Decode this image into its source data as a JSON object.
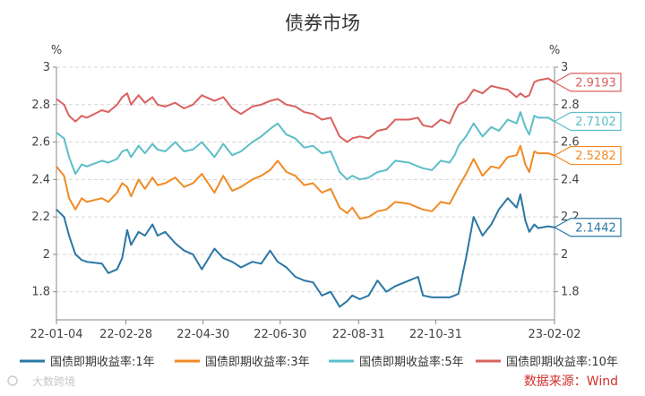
{
  "chart_data": {
    "type": "line",
    "title": "债券市场",
    "y_unit_left": "%",
    "y_unit_right": "%",
    "ylim": [
      1.65,
      3.0
    ],
    "y_ticks_left": [
      "1.8",
      "2",
      "2.2",
      "2.4",
      "2.6",
      "2.8",
      "3"
    ],
    "y_ticks_right": [
      "1.8",
      "2",
      "2.2",
      "2.4",
      "2.6",
      "2.8",
      "3"
    ],
    "y_tick_values": [
      1.8,
      2.0,
      2.2,
      2.4,
      2.6,
      2.8,
      3.0
    ],
    "x_ticks": [
      "22-01-04",
      "22-02-28",
      "22-04-30",
      "22-06-30",
      "22-08-31",
      "22-10-31",
      "23-02-02"
    ],
    "x_tick_dates": [
      "2022-01-04",
      "2022-02-28",
      "2022-04-30",
      "2022-06-30",
      "2022-08-31",
      "2022-10-31",
      "2023-02-02"
    ],
    "grid": true,
    "legend_position": "bottom",
    "series": [
      {
        "name": "国债即期收益率:1年",
        "color": "#2a77a4",
        "last_label": "2.1442",
        "points": [
          [
            "2022-01-04",
            2.24
          ],
          [
            "2022-01-10",
            2.2
          ],
          [
            "2022-01-14",
            2.1
          ],
          [
            "2022-01-19",
            2.0
          ],
          [
            "2022-01-24",
            1.97
          ],
          [
            "2022-01-28",
            1.96
          ],
          [
            "2022-02-09",
            1.95
          ],
          [
            "2022-02-14",
            1.9
          ],
          [
            "2022-02-21",
            1.92
          ],
          [
            "2022-02-25",
            1.98
          ],
          [
            "2022-03-01",
            2.13
          ],
          [
            "2022-03-04",
            2.05
          ],
          [
            "2022-03-10",
            2.12
          ],
          [
            "2022-03-15",
            2.1
          ],
          [
            "2022-03-21",
            2.16
          ],
          [
            "2022-03-25",
            2.1
          ],
          [
            "2022-03-31",
            2.12
          ],
          [
            "2022-04-08",
            2.06
          ],
          [
            "2022-04-15",
            2.02
          ],
          [
            "2022-04-22",
            2.0
          ],
          [
            "2022-04-29",
            1.92
          ],
          [
            "2022-05-09",
            2.03
          ],
          [
            "2022-05-16",
            1.98
          ],
          [
            "2022-05-23",
            1.96
          ],
          [
            "2022-05-30",
            1.93
          ],
          [
            "2022-06-08",
            1.96
          ],
          [
            "2022-06-15",
            1.95
          ],
          [
            "2022-06-22",
            2.02
          ],
          [
            "2022-06-28",
            1.96
          ],
          [
            "2022-07-05",
            1.93
          ],
          [
            "2022-07-12",
            1.88
          ],
          [
            "2022-07-19",
            1.86
          ],
          [
            "2022-07-26",
            1.85
          ],
          [
            "2022-08-02",
            1.78
          ],
          [
            "2022-08-09",
            1.8
          ],
          [
            "2022-08-16",
            1.72
          ],
          [
            "2022-08-22",
            1.75
          ],
          [
            "2022-08-26",
            1.78
          ],
          [
            "2022-09-01",
            1.76
          ],
          [
            "2022-09-08",
            1.78
          ],
          [
            "2022-09-15",
            1.86
          ],
          [
            "2022-09-22",
            1.8
          ],
          [
            "2022-09-29",
            1.83
          ],
          [
            "2022-10-10",
            1.86
          ],
          [
            "2022-10-17",
            1.88
          ],
          [
            "2022-10-21",
            1.78
          ],
          [
            "2022-10-28",
            1.77
          ],
          [
            "2022-11-04",
            1.77
          ],
          [
            "2022-11-11",
            1.77
          ],
          [
            "2022-11-15",
            1.78
          ],
          [
            "2022-11-18",
            1.79
          ],
          [
            "2022-11-24",
            1.98
          ],
          [
            "2022-11-30",
            2.2
          ],
          [
            "2022-12-07",
            2.1
          ],
          [
            "2022-12-14",
            2.16
          ],
          [
            "2022-12-20",
            2.24
          ],
          [
            "2022-12-27",
            2.3
          ],
          [
            "2023-01-03",
            2.25
          ],
          [
            "2023-01-06",
            2.32
          ],
          [
            "2023-01-10",
            2.18
          ],
          [
            "2023-01-13",
            2.12
          ],
          [
            "2023-01-17",
            2.16
          ],
          [
            "2023-01-20",
            2.14
          ],
          [
            "2023-01-28",
            2.15
          ],
          [
            "2023-02-02",
            2.1442
          ]
        ]
      },
      {
        "name": "国债即期收益率:3年",
        "color": "#f08a24",
        "last_label": "2.5282",
        "points": [
          [
            "2022-01-04",
            2.47
          ],
          [
            "2022-01-10",
            2.42
          ],
          [
            "2022-01-14",
            2.3
          ],
          [
            "2022-01-19",
            2.24
          ],
          [
            "2022-01-24",
            2.3
          ],
          [
            "2022-01-28",
            2.28
          ],
          [
            "2022-02-09",
            2.3
          ],
          [
            "2022-02-14",
            2.28
          ],
          [
            "2022-02-21",
            2.33
          ],
          [
            "2022-02-25",
            2.38
          ],
          [
            "2022-03-01",
            2.36
          ],
          [
            "2022-03-04",
            2.31
          ],
          [
            "2022-03-10",
            2.4
          ],
          [
            "2022-03-15",
            2.35
          ],
          [
            "2022-03-21",
            2.41
          ],
          [
            "2022-03-25",
            2.37
          ],
          [
            "2022-03-31",
            2.38
          ],
          [
            "2022-04-08",
            2.41
          ],
          [
            "2022-04-15",
            2.36
          ],
          [
            "2022-04-22",
            2.38
          ],
          [
            "2022-04-29",
            2.43
          ],
          [
            "2022-05-09",
            2.33
          ],
          [
            "2022-05-16",
            2.42
          ],
          [
            "2022-05-23",
            2.34
          ],
          [
            "2022-05-30",
            2.36
          ],
          [
            "2022-06-08",
            2.4
          ],
          [
            "2022-06-15",
            2.42
          ],
          [
            "2022-06-22",
            2.45
          ],
          [
            "2022-06-28",
            2.5
          ],
          [
            "2022-07-05",
            2.44
          ],
          [
            "2022-07-12",
            2.42
          ],
          [
            "2022-07-19",
            2.37
          ],
          [
            "2022-07-26",
            2.38
          ],
          [
            "2022-08-02",
            2.33
          ],
          [
            "2022-08-09",
            2.35
          ],
          [
            "2022-08-16",
            2.25
          ],
          [
            "2022-08-22",
            2.22
          ],
          [
            "2022-08-26",
            2.25
          ],
          [
            "2022-09-01",
            2.19
          ],
          [
            "2022-09-08",
            2.2
          ],
          [
            "2022-09-15",
            2.23
          ],
          [
            "2022-09-22",
            2.24
          ],
          [
            "2022-09-29",
            2.28
          ],
          [
            "2022-10-10",
            2.27
          ],
          [
            "2022-10-17",
            2.25
          ],
          [
            "2022-10-21",
            2.24
          ],
          [
            "2022-10-28",
            2.23
          ],
          [
            "2022-11-04",
            2.28
          ],
          [
            "2022-11-11",
            2.27
          ],
          [
            "2022-11-15",
            2.32
          ],
          [
            "2022-11-18",
            2.36
          ],
          [
            "2022-11-24",
            2.43
          ],
          [
            "2022-11-30",
            2.51
          ],
          [
            "2022-12-07",
            2.42
          ],
          [
            "2022-12-14",
            2.47
          ],
          [
            "2022-12-20",
            2.46
          ],
          [
            "2022-12-27",
            2.52
          ],
          [
            "2023-01-03",
            2.53
          ],
          [
            "2023-01-06",
            2.58
          ],
          [
            "2023-01-10",
            2.48
          ],
          [
            "2023-01-13",
            2.44
          ],
          [
            "2023-01-17",
            2.55
          ],
          [
            "2023-01-20",
            2.54
          ],
          [
            "2023-01-28",
            2.54
          ],
          [
            "2023-02-02",
            2.5282
          ]
        ]
      },
      {
        "name": "国债即期收益率:5年",
        "color": "#5cbec8",
        "last_label": "2.7102",
        "points": [
          [
            "2022-01-04",
            2.65
          ],
          [
            "2022-01-10",
            2.62
          ],
          [
            "2022-01-14",
            2.52
          ],
          [
            "2022-01-19",
            2.43
          ],
          [
            "2022-01-24",
            2.48
          ],
          [
            "2022-01-28",
            2.47
          ],
          [
            "2022-02-09",
            2.5
          ],
          [
            "2022-02-14",
            2.49
          ],
          [
            "2022-02-21",
            2.51
          ],
          [
            "2022-02-25",
            2.55
          ],
          [
            "2022-03-01",
            2.56
          ],
          [
            "2022-03-04",
            2.52
          ],
          [
            "2022-03-10",
            2.58
          ],
          [
            "2022-03-15",
            2.54
          ],
          [
            "2022-03-21",
            2.59
          ],
          [
            "2022-03-25",
            2.56
          ],
          [
            "2022-03-31",
            2.55
          ],
          [
            "2022-04-08",
            2.6
          ],
          [
            "2022-04-15",
            2.55
          ],
          [
            "2022-04-22",
            2.56
          ],
          [
            "2022-04-29",
            2.6
          ],
          [
            "2022-05-09",
            2.52
          ],
          [
            "2022-05-16",
            2.59
          ],
          [
            "2022-05-23",
            2.53
          ],
          [
            "2022-05-30",
            2.55
          ],
          [
            "2022-06-08",
            2.6
          ],
          [
            "2022-06-15",
            2.63
          ],
          [
            "2022-06-22",
            2.67
          ],
          [
            "2022-06-28",
            2.7
          ],
          [
            "2022-07-05",
            2.64
          ],
          [
            "2022-07-12",
            2.62
          ],
          [
            "2022-07-19",
            2.57
          ],
          [
            "2022-07-26",
            2.58
          ],
          [
            "2022-08-02",
            2.54
          ],
          [
            "2022-08-09",
            2.55
          ],
          [
            "2022-08-16",
            2.44
          ],
          [
            "2022-08-22",
            2.4
          ],
          [
            "2022-08-26",
            2.42
          ],
          [
            "2022-09-01",
            2.4
          ],
          [
            "2022-09-08",
            2.41
          ],
          [
            "2022-09-15",
            2.44
          ],
          [
            "2022-09-22",
            2.45
          ],
          [
            "2022-09-29",
            2.5
          ],
          [
            "2022-10-10",
            2.49
          ],
          [
            "2022-10-17",
            2.47
          ],
          [
            "2022-10-21",
            2.46
          ],
          [
            "2022-10-28",
            2.45
          ],
          [
            "2022-11-04",
            2.5
          ],
          [
            "2022-11-11",
            2.49
          ],
          [
            "2022-11-15",
            2.53
          ],
          [
            "2022-11-18",
            2.58
          ],
          [
            "2022-11-24",
            2.63
          ],
          [
            "2022-11-30",
            2.7
          ],
          [
            "2022-12-07",
            2.63
          ],
          [
            "2022-12-14",
            2.68
          ],
          [
            "2022-12-20",
            2.66
          ],
          [
            "2022-12-27",
            2.72
          ],
          [
            "2023-01-03",
            2.7
          ],
          [
            "2023-01-06",
            2.76
          ],
          [
            "2023-01-10",
            2.68
          ],
          [
            "2023-01-13",
            2.64
          ],
          [
            "2023-01-17",
            2.74
          ],
          [
            "2023-01-20",
            2.73
          ],
          [
            "2023-01-28",
            2.73
          ],
          [
            "2023-02-02",
            2.7102
          ]
        ]
      },
      {
        "name": "国债即期收益率:10年",
        "color": "#d9625f",
        "last_label": "2.9193",
        "points": [
          [
            "2022-01-04",
            2.83
          ],
          [
            "2022-01-10",
            2.8
          ],
          [
            "2022-01-14",
            2.74
          ],
          [
            "2022-01-19",
            2.71
          ],
          [
            "2022-01-24",
            2.74
          ],
          [
            "2022-01-28",
            2.73
          ],
          [
            "2022-02-09",
            2.77
          ],
          [
            "2022-02-14",
            2.76
          ],
          [
            "2022-02-21",
            2.8
          ],
          [
            "2022-02-25",
            2.84
          ],
          [
            "2022-03-01",
            2.86
          ],
          [
            "2022-03-04",
            2.8
          ],
          [
            "2022-03-10",
            2.85
          ],
          [
            "2022-03-15",
            2.81
          ],
          [
            "2022-03-21",
            2.84
          ],
          [
            "2022-03-25",
            2.8
          ],
          [
            "2022-03-31",
            2.79
          ],
          [
            "2022-04-08",
            2.81
          ],
          [
            "2022-04-15",
            2.78
          ],
          [
            "2022-04-22",
            2.8
          ],
          [
            "2022-04-29",
            2.85
          ],
          [
            "2022-05-09",
            2.82
          ],
          [
            "2022-05-16",
            2.84
          ],
          [
            "2022-05-23",
            2.78
          ],
          [
            "2022-05-30",
            2.75
          ],
          [
            "2022-06-08",
            2.79
          ],
          [
            "2022-06-15",
            2.8
          ],
          [
            "2022-06-22",
            2.82
          ],
          [
            "2022-06-28",
            2.83
          ],
          [
            "2022-07-05",
            2.8
          ],
          [
            "2022-07-12",
            2.79
          ],
          [
            "2022-07-19",
            2.76
          ],
          [
            "2022-07-26",
            2.75
          ],
          [
            "2022-08-02",
            2.72
          ],
          [
            "2022-08-09",
            2.73
          ],
          [
            "2022-08-16",
            2.63
          ],
          [
            "2022-08-22",
            2.6
          ],
          [
            "2022-08-26",
            2.62
          ],
          [
            "2022-09-01",
            2.63
          ],
          [
            "2022-09-08",
            2.62
          ],
          [
            "2022-09-15",
            2.66
          ],
          [
            "2022-09-22",
            2.67
          ],
          [
            "2022-09-29",
            2.72
          ],
          [
            "2022-10-10",
            2.72
          ],
          [
            "2022-10-17",
            2.73
          ],
          [
            "2022-10-21",
            2.69
          ],
          [
            "2022-10-28",
            2.68
          ],
          [
            "2022-11-04",
            2.72
          ],
          [
            "2022-11-11",
            2.7
          ],
          [
            "2022-11-15",
            2.76
          ],
          [
            "2022-11-18",
            2.8
          ],
          [
            "2022-11-24",
            2.82
          ],
          [
            "2022-11-30",
            2.88
          ],
          [
            "2022-12-07",
            2.86
          ],
          [
            "2022-12-14",
            2.9
          ],
          [
            "2022-12-20",
            2.89
          ],
          [
            "2022-12-27",
            2.88
          ],
          [
            "2023-01-03",
            2.84
          ],
          [
            "2023-01-06",
            2.86
          ],
          [
            "2023-01-10",
            2.84
          ],
          [
            "2023-01-13",
            2.85
          ],
          [
            "2023-01-17",
            2.92
          ],
          [
            "2023-01-20",
            2.93
          ],
          [
            "2023-01-28",
            2.94
          ],
          [
            "2023-02-02",
            2.9193
          ]
        ]
      }
    ]
  },
  "source_text": "数据来源：Wind",
  "watermark_text": "大数跨境"
}
